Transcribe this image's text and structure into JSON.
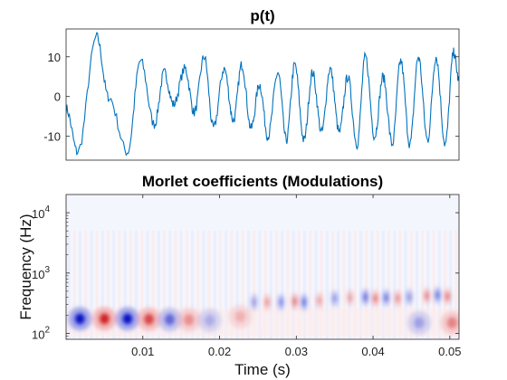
{
  "chart_data": [
    {
      "type": "line",
      "title": "p(t)",
      "xlabel": "",
      "ylabel": "",
      "ylim": [
        -16,
        17
      ],
      "xlim": [
        0,
        0.0512
      ],
      "yticks": [
        "10",
        "0",
        "-10"
      ],
      "ytick_values": [
        10,
        0,
        -10
      ],
      "line_color": "#0072BD",
      "grid": false,
      "series": [
        {
          "x": [
            0,
            0.0015,
            0.004,
            0.0055,
            0.008,
            0.0097,
            0.0115,
            0.0128,
            0.014,
            0.0155,
            0.0167,
            0.018,
            0.0192,
            0.0206,
            0.0218,
            0.0229,
            0.0241,
            0.0252,
            0.0263,
            0.0276,
            0.0287,
            0.0298,
            0.031,
            0.0321,
            0.0333,
            0.0344,
            0.0356,
            0.0367,
            0.0379,
            0.039,
            0.0402,
            0.0413,
            0.0425,
            0.0436,
            0.0448,
            0.0459,
            0.0471,
            0.0482,
            0.0494,
            0.0505,
            0.0512
          ],
          "y": [
            -3,
            -14,
            15,
            0,
            -14,
            9,
            -7,
            6,
            -2,
            7,
            -4,
            10,
            -8,
            7,
            -6,
            8,
            -8,
            3,
            -10,
            6,
            -11,
            8,
            -11,
            6,
            -9,
            7,
            -9,
            5,
            -12,
            10,
            -10,
            5,
            -12,
            9,
            -12,
            10,
            -11,
            10,
            -12,
            11,
            4
          ]
        }
      ]
    },
    {
      "type": "heatmap",
      "title": "Morlet coefficients (Modulations)",
      "xlabel": "Time (s)",
      "ylabel": "Frequency (Hz)",
      "xlim": [
        0,
        0.0512
      ],
      "ylim": [
        80,
        20000
      ],
      "yscale": "log",
      "xticks": [
        "0.01",
        "0.02",
        "0.03",
        "0.04",
        "0.05"
      ],
      "xtick_values": [
        0.01,
        0.02,
        0.03,
        0.04,
        0.05
      ],
      "yticks": [
        "10",
        "10",
        "10"
      ],
      "ytick_exponents": [
        "2",
        "3",
        "4"
      ],
      "ytick_values": [
        100,
        1000,
        10000
      ],
      "colormap": [
        "#0000cc",
        "#ffffff",
        "#cc0000"
      ],
      "blobs": [
        {
          "t": 0.0018,
          "f": 175,
          "v": -1.0
        },
        {
          "t": 0.005,
          "f": 175,
          "v": 0.9
        },
        {
          "t": 0.008,
          "f": 175,
          "v": -1.0
        },
        {
          "t": 0.0108,
          "f": 172,
          "v": 0.7
        },
        {
          "t": 0.0135,
          "f": 170,
          "v": -0.5
        },
        {
          "t": 0.016,
          "f": 168,
          "v": 0.35
        },
        {
          "t": 0.0187,
          "f": 165,
          "v": -0.2
        },
        {
          "t": 0.0227,
          "f": 190,
          "v": 0.2
        },
        {
          "t": 0.0245,
          "f": 330,
          "v": -0.3
        },
        {
          "t": 0.0262,
          "f": 330,
          "v": 0.35
        },
        {
          "t": 0.028,
          "f": 330,
          "v": -0.4
        },
        {
          "t": 0.0298,
          "f": 340,
          "v": 0.5
        },
        {
          "t": 0.031,
          "f": 330,
          "v": -0.5
        },
        {
          "t": 0.033,
          "f": 350,
          "v": 0.3
        },
        {
          "t": 0.035,
          "f": 380,
          "v": -0.35
        },
        {
          "t": 0.037,
          "f": 390,
          "v": 0.3
        },
        {
          "t": 0.039,
          "f": 400,
          "v": -0.55
        },
        {
          "t": 0.0403,
          "f": 380,
          "v": 0.5
        },
        {
          "t": 0.0417,
          "f": 390,
          "v": -0.5
        },
        {
          "t": 0.0432,
          "f": 380,
          "v": 0.4
        },
        {
          "t": 0.0447,
          "f": 400,
          "v": -0.35
        },
        {
          "t": 0.047,
          "f": 420,
          "v": 0.45
        },
        {
          "t": 0.0484,
          "f": 430,
          "v": -0.5
        },
        {
          "t": 0.0497,
          "f": 410,
          "v": 0.5
        },
        {
          "t": 0.0503,
          "f": 150,
          "v": 0.4
        },
        {
          "t": 0.046,
          "f": 150,
          "v": -0.25
        }
      ]
    }
  ]
}
